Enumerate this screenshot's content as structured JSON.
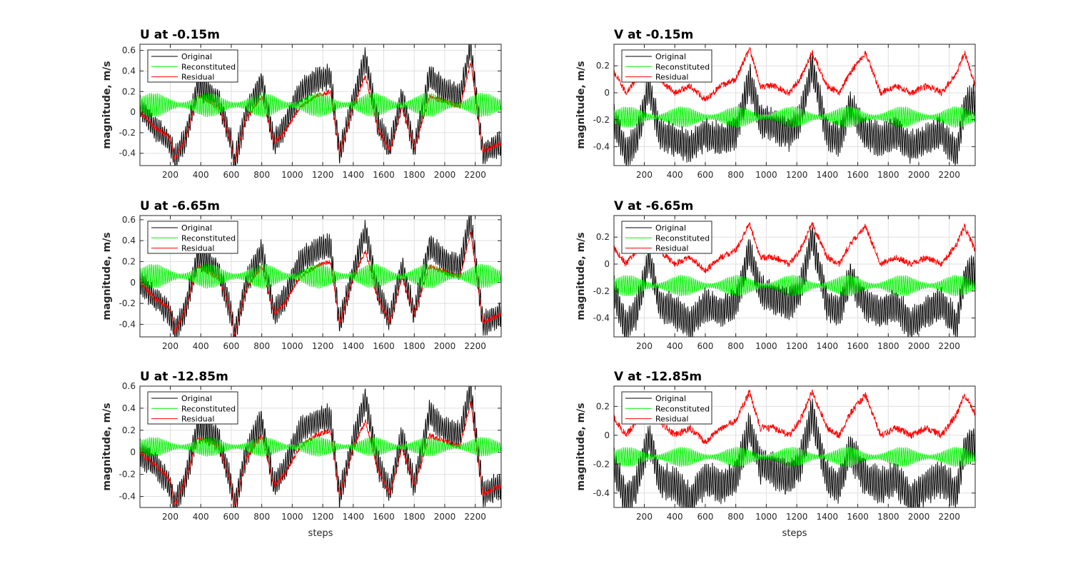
{
  "chart_data": [
    {
      "type": "line",
      "title": "U at -0.15m",
      "xlabel": "",
      "ylabel": "magnitude, m/s",
      "xlim": [
        1,
        2370
      ],
      "ylim": [
        -0.52,
        0.66
      ],
      "xticks": [
        200,
        400,
        600,
        800,
        1000,
        1200,
        1400,
        1600,
        1800,
        2000,
        2200
      ],
      "yticks": [
        -0.4,
        -0.2,
        0,
        0.2,
        0.4,
        0.6
      ],
      "grid": true,
      "legend_position": "top-left",
      "series": [
        {
          "name": "Original",
          "color": "#000000",
          "x": [
            1,
            100,
            200,
            230,
            300,
            380,
            450,
            520,
            600,
            620,
            700,
            800,
            880,
            950,
            1050,
            1150,
            1250,
            1310,
            1400,
            1480,
            1560,
            1640,
            1720,
            1800,
            1900,
            2000,
            2100,
            2170,
            2250,
            2370
          ],
          "values": [
            0.05,
            -0.15,
            -0.3,
            -0.45,
            -0.25,
            0.25,
            0.2,
            0.1,
            -0.3,
            -0.5,
            0.0,
            0.3,
            -0.3,
            -0.15,
            0.2,
            0.3,
            0.35,
            -0.4,
            0.1,
            0.52,
            -0.1,
            -0.35,
            0.15,
            -0.35,
            0.35,
            0.2,
            0.15,
            0.63,
            -0.4,
            -0.3
          ]
        },
        {
          "name": "Reconstituted",
          "color": "#00ee00",
          "mean": 0.07,
          "amplitude": 0.12,
          "period": 12.4,
          "envelope_period": 360
        },
        {
          "name": "Residual",
          "color": "#ff0000",
          "x": [
            1,
            100,
            200,
            230,
            300,
            380,
            450,
            520,
            600,
            620,
            700,
            800,
            880,
            950,
            1050,
            1150,
            1250,
            1310,
            1400,
            1480,
            1560,
            1640,
            1720,
            1800,
            1900,
            2000,
            2100,
            2170,
            2250,
            2370
          ],
          "values": [
            0.0,
            -0.15,
            -0.25,
            -0.45,
            -0.25,
            0.15,
            0.1,
            0.05,
            -0.3,
            -0.48,
            -0.05,
            0.15,
            -0.3,
            -0.2,
            0.05,
            0.15,
            0.2,
            -0.4,
            0.05,
            0.35,
            -0.15,
            -0.38,
            0.05,
            -0.35,
            0.15,
            0.1,
            0.05,
            0.48,
            -0.38,
            -0.3
          ]
        }
      ]
    },
    {
      "type": "line",
      "title": "V at -0.15m",
      "xlabel": "",
      "ylabel": "magnitude, m/s",
      "xlim": [
        1,
        2370
      ],
      "ylim": [
        -0.54,
        0.36
      ],
      "xticks": [
        200,
        400,
        600,
        800,
        1000,
        1200,
        1400,
        1600,
        1800,
        2000,
        2200
      ],
      "yticks": [
        -0.4,
        -0.2,
        0,
        0.2
      ],
      "grid": true,
      "legend_position": "top-left",
      "series": [
        {
          "name": "Original",
          "color": "#000000",
          "x": [
            1,
            80,
            150,
            230,
            300,
            400,
            500,
            600,
            700,
            800,
            890,
            960,
            1050,
            1150,
            1220,
            1300,
            1400,
            1480,
            1550,
            1650,
            1750,
            1850,
            1950,
            2050,
            2150,
            2250,
            2300,
            2370
          ],
          "values": [
            -0.2,
            -0.45,
            -0.35,
            0.05,
            -0.3,
            -0.35,
            -0.4,
            -0.3,
            -0.35,
            -0.3,
            0.1,
            -0.2,
            -0.25,
            -0.3,
            -0.2,
            0.2,
            -0.3,
            -0.35,
            -0.1,
            -0.3,
            -0.35,
            -0.3,
            -0.4,
            -0.35,
            -0.3,
            -0.45,
            -0.1,
            -0.05
          ]
        },
        {
          "name": "Reconstituted",
          "color": "#00ee00",
          "mean": -0.18,
          "amplitude": 0.08,
          "period": 12.4,
          "envelope_period": 360
        },
        {
          "name": "Residual",
          "color": "#ff0000",
          "x": [
            1,
            80,
            150,
            230,
            300,
            400,
            500,
            600,
            700,
            800,
            890,
            960,
            1050,
            1150,
            1220,
            1300,
            1400,
            1480,
            1550,
            1650,
            1750,
            1850,
            1950,
            2050,
            2150,
            2250,
            2300,
            2370
          ],
          "values": [
            0.15,
            0.0,
            0.1,
            0.3,
            0.1,
            0.0,
            0.05,
            -0.05,
            0.05,
            0.1,
            0.33,
            0.05,
            0.05,
            0.0,
            0.1,
            0.3,
            0.05,
            0.0,
            0.15,
            0.3,
            0.0,
            0.05,
            0.0,
            0.05,
            0.0,
            0.15,
            0.3,
            0.05
          ]
        }
      ]
    },
    {
      "type": "line",
      "title": "U at -6.65m",
      "xlabel": "",
      "ylabel": "magnitude, m/s",
      "xlim": [
        1,
        2370
      ],
      "ylim": [
        -0.52,
        0.64
      ],
      "xticks": [
        200,
        400,
        600,
        800,
        1000,
        1200,
        1400,
        1600,
        1800,
        2000,
        2200
      ],
      "yticks": [
        -0.4,
        -0.2,
        0,
        0.2,
        0.4,
        0.6
      ],
      "grid": true,
      "legend_position": "top-left",
      "series": [
        {
          "name": "Original",
          "color": "#000000",
          "x": [
            1,
            100,
            200,
            230,
            300,
            380,
            450,
            520,
            600,
            620,
            700,
            800,
            880,
            950,
            1050,
            1150,
            1250,
            1310,
            1400,
            1480,
            1560,
            1640,
            1720,
            1800,
            1900,
            2000,
            2100,
            2170,
            2250,
            2370
          ],
          "values": [
            0.0,
            -0.15,
            -0.3,
            -0.48,
            -0.25,
            0.25,
            0.2,
            0.1,
            -0.3,
            -0.5,
            0.0,
            0.3,
            -0.3,
            -0.15,
            0.2,
            0.3,
            0.35,
            -0.4,
            0.1,
            0.5,
            -0.1,
            -0.35,
            0.15,
            -0.3,
            0.35,
            0.2,
            0.15,
            0.62,
            -0.4,
            -0.3
          ]
        },
        {
          "name": "Reconstituted",
          "color": "#00ee00",
          "mean": 0.06,
          "amplitude": 0.12,
          "period": 12.4,
          "envelope_period": 360
        },
        {
          "name": "Residual",
          "color": "#ff0000",
          "x": [
            1,
            100,
            200,
            230,
            300,
            380,
            450,
            520,
            600,
            620,
            700,
            800,
            880,
            950,
            1050,
            1150,
            1250,
            1310,
            1400,
            1480,
            1560,
            1640,
            1720,
            1800,
            1900,
            2000,
            2100,
            2170,
            2250,
            2370
          ],
          "values": [
            0.0,
            -0.15,
            -0.25,
            -0.48,
            -0.25,
            0.15,
            0.1,
            0.05,
            -0.3,
            -0.5,
            -0.05,
            0.15,
            -0.3,
            -0.2,
            0.05,
            0.15,
            0.2,
            -0.4,
            0.05,
            0.3,
            -0.15,
            -0.38,
            0.05,
            -0.3,
            0.15,
            0.1,
            0.05,
            0.48,
            -0.38,
            -0.3
          ]
        }
      ]
    },
    {
      "type": "line",
      "title": "V at -6.65m",
      "xlabel": "",
      "ylabel": "magnitude, m/s",
      "xlim": [
        1,
        2370
      ],
      "ylim": [
        -0.54,
        0.36
      ],
      "xticks": [
        200,
        400,
        600,
        800,
        1000,
        1200,
        1400,
        1600,
        1800,
        2000,
        2200
      ],
      "yticks": [
        -0.4,
        -0.2,
        0,
        0.2
      ],
      "grid": true,
      "legend_position": "top-left",
      "series": [
        {
          "name": "Original",
          "color": "#000000",
          "x": [
            1,
            80,
            150,
            230,
            300,
            400,
            500,
            600,
            700,
            800,
            890,
            960,
            1050,
            1150,
            1220,
            1300,
            1400,
            1480,
            1550,
            1650,
            1750,
            1850,
            1950,
            2050,
            2150,
            2250,
            2300,
            2370
          ],
          "values": [
            -0.2,
            -0.48,
            -0.35,
            0.05,
            -0.3,
            -0.35,
            -0.45,
            -0.3,
            -0.35,
            -0.3,
            0.1,
            -0.2,
            -0.25,
            -0.3,
            -0.2,
            0.2,
            -0.3,
            -0.35,
            -0.1,
            -0.3,
            -0.35,
            -0.3,
            -0.45,
            -0.35,
            -0.3,
            -0.45,
            -0.1,
            -0.05
          ]
        },
        {
          "name": "Reconstituted",
          "color": "#00ee00",
          "mean": -0.16,
          "amplitude": 0.08,
          "period": 12.4,
          "envelope_period": 360
        },
        {
          "name": "Residual",
          "color": "#ff0000",
          "x": [
            1,
            80,
            150,
            230,
            300,
            400,
            500,
            600,
            700,
            800,
            890,
            960,
            1050,
            1150,
            1220,
            1300,
            1400,
            1480,
            1550,
            1650,
            1750,
            1850,
            1950,
            2050,
            2150,
            2250,
            2300,
            2370
          ],
          "values": [
            0.12,
            0.0,
            0.1,
            0.28,
            0.1,
            0.0,
            0.05,
            -0.05,
            0.05,
            0.1,
            0.3,
            0.05,
            0.05,
            0.0,
            0.1,
            0.3,
            0.05,
            0.0,
            0.15,
            0.28,
            0.0,
            0.05,
            0.0,
            0.05,
            0.0,
            0.15,
            0.28,
            0.1
          ]
        }
      ]
    },
    {
      "type": "line",
      "title": "U at -12.85m",
      "xlabel": "steps",
      "ylabel": "magnitude, m/s",
      "xlim": [
        1,
        2370
      ],
      "ylim": [
        -0.5,
        0.6
      ],
      "xticks": [
        200,
        400,
        600,
        800,
        1000,
        1200,
        1400,
        1600,
        1800,
        2000,
        2200
      ],
      "yticks": [
        -0.4,
        -0.2,
        0,
        0.2,
        0.4,
        0.6
      ],
      "grid": true,
      "legend_position": "top-left",
      "series": [
        {
          "name": "Original",
          "color": "#000000",
          "x": [
            1,
            100,
            200,
            230,
            300,
            380,
            450,
            520,
            600,
            620,
            700,
            800,
            880,
            950,
            1050,
            1150,
            1250,
            1310,
            1400,
            1480,
            1560,
            1640,
            1720,
            1800,
            1900,
            2000,
            2100,
            2170,
            2250,
            2370
          ],
          "values": [
            0.0,
            -0.12,
            -0.3,
            -0.48,
            -0.25,
            0.22,
            0.2,
            0.1,
            -0.3,
            -0.5,
            0.0,
            0.28,
            -0.3,
            -0.15,
            0.2,
            0.28,
            0.32,
            -0.4,
            0.1,
            0.48,
            -0.1,
            -0.35,
            0.15,
            -0.3,
            0.35,
            0.2,
            0.15,
            0.58,
            -0.38,
            -0.3
          ]
        },
        {
          "name": "Reconstituted",
          "color": "#00ee00",
          "mean": 0.05,
          "amplitude": 0.09,
          "period": 12.4,
          "envelope_period": 360
        },
        {
          "name": "Residual",
          "color": "#ff0000",
          "x": [
            1,
            100,
            200,
            230,
            300,
            380,
            450,
            520,
            600,
            620,
            700,
            800,
            880,
            950,
            1050,
            1150,
            1250,
            1310,
            1400,
            1480,
            1560,
            1640,
            1720,
            1800,
            1900,
            2000,
            2100,
            2170,
            2250,
            2370
          ],
          "values": [
            0.0,
            -0.12,
            -0.25,
            -0.48,
            -0.25,
            0.12,
            0.1,
            0.05,
            -0.3,
            -0.5,
            -0.05,
            0.15,
            -0.3,
            -0.2,
            0.05,
            0.15,
            0.2,
            -0.4,
            0.05,
            0.28,
            -0.15,
            -0.38,
            0.05,
            -0.3,
            0.15,
            0.1,
            0.05,
            0.45,
            -0.38,
            -0.3
          ]
        }
      ]
    },
    {
      "type": "line",
      "title": "V at -12.85m",
      "xlabel": "steps",
      "ylabel": "magnitude, m/s",
      "xlim": [
        1,
        2370
      ],
      "ylim": [
        -0.5,
        0.34
      ],
      "xticks": [
        200,
        400,
        600,
        800,
        1000,
        1200,
        1400,
        1600,
        1800,
        2000,
        2200
      ],
      "yticks": [
        -0.4,
        -0.2,
        0,
        0.2
      ],
      "grid": true,
      "legend_position": "top-left",
      "series": [
        {
          "name": "Original",
          "color": "#000000",
          "x": [
            1,
            80,
            150,
            230,
            300,
            400,
            500,
            600,
            700,
            800,
            890,
            960,
            1050,
            1150,
            1220,
            1300,
            1400,
            1480,
            1550,
            1650,
            1750,
            1850,
            1950,
            2050,
            2150,
            2250,
            2300,
            2370
          ],
          "values": [
            -0.2,
            -0.45,
            -0.35,
            0.0,
            -0.3,
            -0.35,
            -0.45,
            -0.3,
            -0.35,
            -0.3,
            0.05,
            -0.2,
            -0.25,
            -0.3,
            -0.2,
            0.15,
            -0.3,
            -0.35,
            -0.1,
            -0.3,
            -0.35,
            -0.3,
            -0.45,
            -0.35,
            -0.3,
            -0.4,
            -0.1,
            -0.05
          ]
        },
        {
          "name": "Reconstituted",
          "color": "#00ee00",
          "mean": -0.15,
          "amplitude": 0.07,
          "period": 12.4,
          "envelope_period": 360
        },
        {
          "name": "Residual",
          "color": "#ff0000",
          "x": [
            1,
            80,
            150,
            230,
            300,
            400,
            500,
            600,
            700,
            800,
            890,
            960,
            1050,
            1150,
            1220,
            1300,
            1400,
            1480,
            1550,
            1650,
            1750,
            1850,
            1950,
            2050,
            2150,
            2250,
            2300,
            2370
          ],
          "values": [
            0.12,
            0.0,
            0.1,
            0.28,
            0.1,
            0.0,
            0.05,
            -0.05,
            0.05,
            0.1,
            0.3,
            0.05,
            0.05,
            0.0,
            0.1,
            0.3,
            0.05,
            0.0,
            0.15,
            0.28,
            0.0,
            0.05,
            0.0,
            0.05,
            0.0,
            0.15,
            0.28,
            0.15
          ]
        }
      ]
    }
  ]
}
